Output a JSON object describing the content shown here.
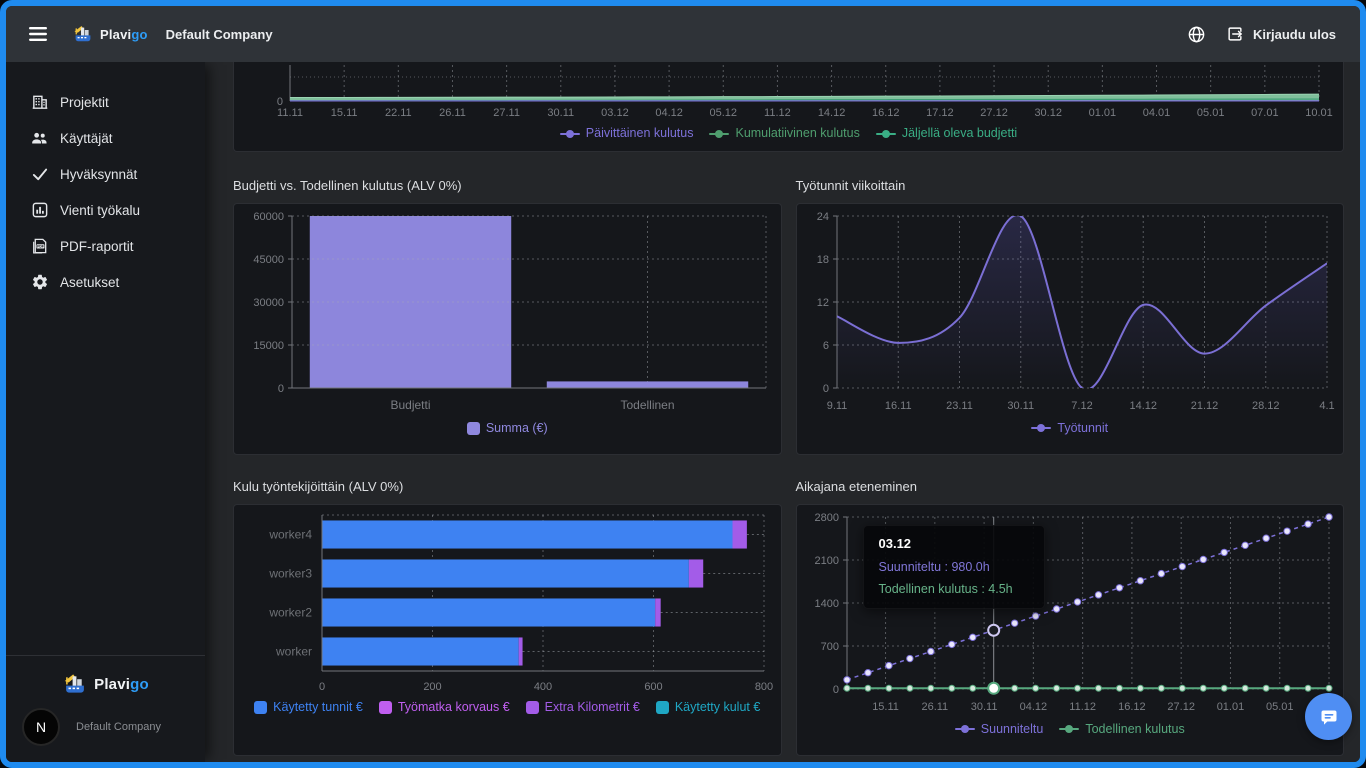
{
  "app": {
    "accent_blue": "#1f8bef",
    "brand": {
      "primary": "Plavi",
      "accent": "go"
    }
  },
  "topbar": {
    "company": "Default Company",
    "logout": "Kirjaudu ulos"
  },
  "sidebar": {
    "items": [
      {
        "label": "Projektit"
      },
      {
        "label": "Käyttäjät"
      },
      {
        "label": "Hyväksynnät"
      },
      {
        "label": "Vienti työkalu"
      },
      {
        "label": "PDF-raportit"
      },
      {
        "label": "Asetukset"
      }
    ],
    "footer": {
      "company": "Default Company",
      "avatar_letter": "N"
    }
  },
  "chart_data": [
    {
      "id": "burn",
      "type": "line",
      "title": "",
      "note": "chart partially scrolled out of view; only zero line, x axis and legend visible",
      "x": [
        "11.11",
        "15.11",
        "22.11",
        "26.11",
        "27.11",
        "30.11",
        "03.12",
        "04.12",
        "05.12",
        "11.12",
        "14.12",
        "16.12",
        "17.12",
        "27.12",
        "30.12",
        "01.01",
        "04.01",
        "05.01",
        "07.01",
        "10.01"
      ],
      "visible_ytick": "0",
      "y_visible_max": 5000,
      "series": [
        {
          "name": "Päivittäinen kulutus",
          "color": "#7d71d9",
          "marker": "line",
          "values": [
            20,
            15,
            25,
            18,
            12,
            22,
            16,
            20,
            14,
            18,
            24,
            16,
            20,
            15,
            18,
            22,
            16,
            14,
            20,
            18
          ]
        },
        {
          "name": "Kumulatiivinen kulutus",
          "color": "#4f9e6e",
          "marker": "line",
          "values": [
            20,
            35,
            50,
            65,
            80,
            95,
            110,
            125,
            140,
            155,
            170,
            185,
            200,
            210,
            220,
            230,
            240,
            250,
            260,
            270
          ]
        },
        {
          "name": "Jäljellä oleva budjetti",
          "color": "#7fbf9b",
          "legend_color": "#3aae85",
          "marker": "line",
          "render": "band",
          "values": [
            480,
            490,
            500,
            515,
            530,
            545,
            560,
            580,
            600,
            620,
            645,
            670,
            700,
            730,
            760,
            795,
            830,
            865,
            910,
            960
          ]
        }
      ]
    },
    {
      "id": "budget",
      "type": "bar",
      "title": "Budjetti vs. Todellinen kulutus (ALV 0%)",
      "categories": [
        "Budjetti",
        "Todellinen"
      ],
      "values": [
        60000,
        2300
      ],
      "bar_color": "#8d86dc",
      "yticks": [
        0,
        15000,
        30000,
        45000,
        60000
      ],
      "ylim": [
        0,
        60000
      ],
      "legend": [
        {
          "label": "Summa (€)",
          "color": "#8f88de",
          "marker": "square"
        }
      ]
    },
    {
      "id": "hours",
      "type": "area",
      "title": "Työtunnit viikoittain",
      "x": [
        "9.11",
        "16.11",
        "23.11",
        "30.11",
        "7.12",
        "14.12",
        "21.12",
        "28.12",
        "4.1"
      ],
      "values": [
        10,
        6.3,
        9.8,
        24,
        0,
        11.6,
        4.8,
        11.5,
        17.4
      ],
      "yticks": [
        0,
        6,
        12,
        18,
        24
      ],
      "ylim": [
        0,
        24
      ],
      "line_color": "#7b6fd4",
      "legend": [
        {
          "label": "Työtunnit",
          "color": "#7d71d9",
          "marker": "line"
        }
      ]
    },
    {
      "id": "workers",
      "type": "hbar-stacked",
      "title": "Kulu työntekijöittäin (ALV 0%)",
      "categories": [
        "worker4",
        "worker3",
        "worker2",
        "worker"
      ],
      "series": [
        {
          "name": "Käytetty tunnit €",
          "color": "#3e82f2",
          "values": [
            743,
            664,
            603,
            356
          ]
        },
        {
          "name": "Työmatka korvaus €",
          "color": "#c05ff0",
          "values": [
            0,
            0,
            0,
            0
          ]
        },
        {
          "name": "Extra Kilometrit €",
          "color": "#a35ce8",
          "values": [
            26,
            26,
            10,
            7
          ]
        },
        {
          "name": "Käytetty kulut €",
          "color": "#1fa7c4",
          "values": [
            0,
            0,
            0,
            0
          ]
        }
      ],
      "xticks": [
        0,
        200,
        400,
        600,
        800
      ],
      "xlim": [
        0,
        800
      ]
    },
    {
      "id": "timeline",
      "type": "line",
      "title": "Aikajana eteneminen",
      "xticks": [
        "15.11",
        "26.11",
        "30.11",
        "04.12",
        "11.12",
        "16.12",
        "27.12",
        "01.01",
        "05.01",
        "10.01"
      ],
      "yticks": [
        0,
        700,
        1400,
        2100,
        2800
      ],
      "ylim": [
        0,
        2800
      ],
      "series": [
        {
          "name": "Suunniteltu",
          "color": "#7d71d9",
          "style": "dashed",
          "points": 24,
          "start": 150,
          "end": 2800
        },
        {
          "name": "Todellinen kulutus",
          "color": "#57a87e",
          "style": "solid",
          "points": 24,
          "flat": 12
        }
      ],
      "hover": {
        "index": 7,
        "date": "03.12",
        "planned": "Suunniteltu : 980.0h",
        "actual": "Todellinen kulutus : 4.5h"
      }
    }
  ]
}
